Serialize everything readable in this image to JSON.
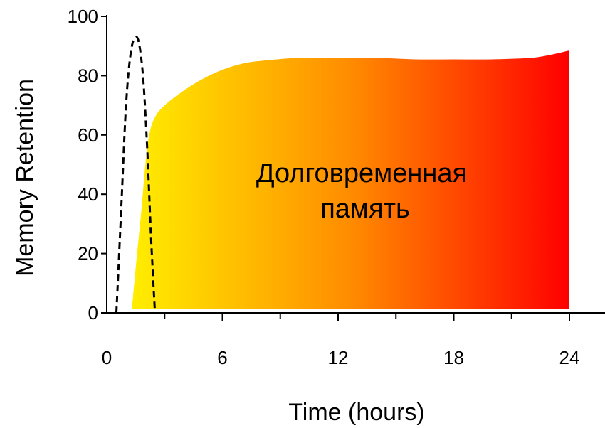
{
  "chart_data": {
    "type": "area",
    "title": "",
    "xlabel": "Time (hours)",
    "ylabel": "Memory Retention",
    "xlim": [
      0,
      24
    ],
    "ylim": [
      0,
      100
    ],
    "x_ticks": [
      0,
      6,
      12,
      18,
      24
    ],
    "y_ticks": [
      0,
      20,
      40,
      60,
      80,
      100
    ],
    "grid": false,
    "annotation_lines": [
      "Долговременная",
      "память"
    ],
    "colors": {
      "gradient_start": "#ffee00",
      "gradient_mid": "#ff8c00",
      "gradient_end": "#ff0000",
      "dashed_line": "#000000"
    },
    "series": [
      {
        "style": "gradient-area",
        "x": [
          1.3,
          1.5,
          1.8,
          2.0,
          2.2,
          2.5,
          3,
          4,
          5,
          6,
          7,
          8,
          10,
          12,
          14,
          16,
          18,
          20,
          22,
          23,
          24
        ],
        "y": [
          1,
          15,
          35,
          50,
          60,
          66,
          70,
          75,
          79,
          82,
          84,
          85,
          86,
          86,
          86,
          85.5,
          85.5,
          85.5,
          86,
          87,
          88.5
        ]
      },
      {
        "style": "dashed-line",
        "x": [
          0.5,
          0.75,
          1.0,
          1.25,
          1.5,
          1.7,
          1.9,
          2.1,
          2.3,
          2.5
        ],
        "y": [
          0,
          35,
          70,
          88,
          93,
          90,
          78,
          55,
          25,
          0
        ]
      }
    ]
  }
}
